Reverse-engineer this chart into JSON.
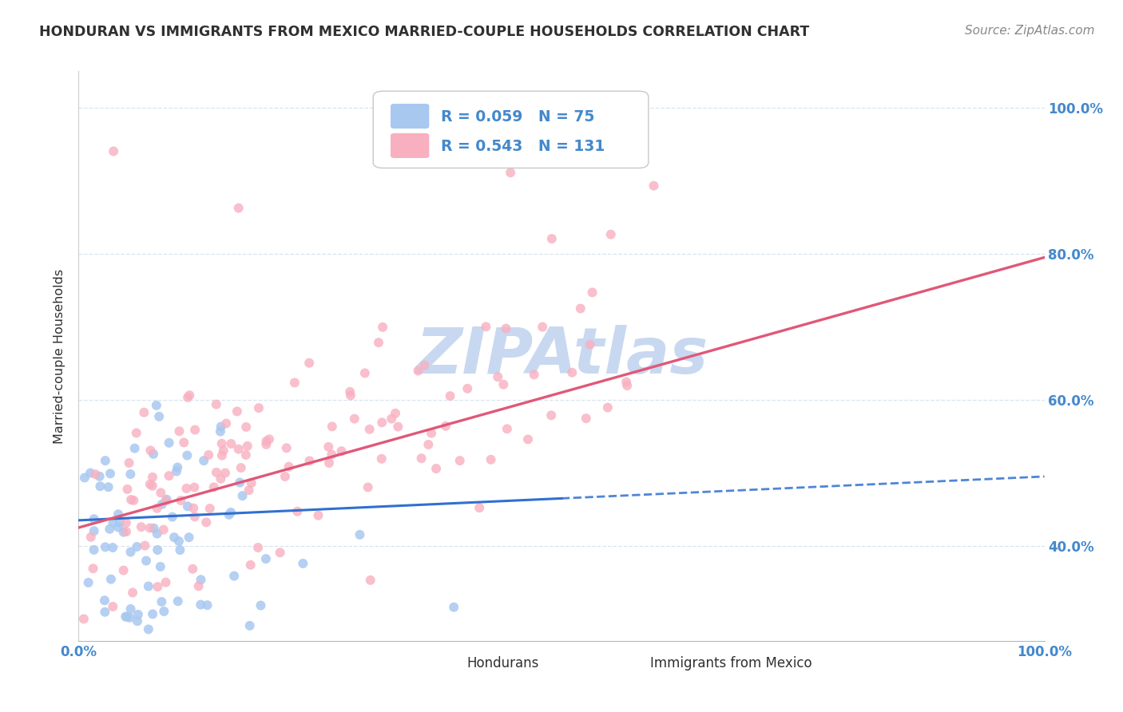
{
  "title": "HONDURAN VS IMMIGRANTS FROM MEXICO MARRIED-COUPLE HOUSEHOLDS CORRELATION CHART",
  "source": "Source: ZipAtlas.com",
  "ylabel": "Married-couple Households",
  "series1_label": "Hondurans",
  "series2_label": "Immigrants from Mexico",
  "series1_R": 0.059,
  "series1_N": 75,
  "series2_R": 0.543,
  "series2_N": 131,
  "series1_color": "#a8c8f0",
  "series2_color": "#f8b0c0",
  "series1_line_color": "#3070d0",
  "series2_line_color": "#e05878",
  "watermark_text": "ZIPAtlas",
  "watermark_color": "#c8d8f0",
  "title_color": "#303030",
  "axis_label_color": "#4488cc",
  "grid_color": "#d8e4f0",
  "background_color": "#ffffff",
  "yticks": [
    0.4,
    0.6,
    0.8,
    1.0
  ],
  "ytick_labels": [
    "40.0%",
    "60.0%",
    "80.0%",
    "100.0%"
  ],
  "xlim": [
    0,
    1
  ],
  "ylim": [
    0.27,
    1.05
  ],
  "seed1": 42,
  "seed2": 123,
  "line1_x0": 0.0,
  "line1_y0": 0.435,
  "line1_x1": 0.5,
  "line1_y1": 0.465,
  "line2_x0": 0.0,
  "line2_y0": 0.425,
  "line2_x1": 1.0,
  "line2_y1": 0.795
}
